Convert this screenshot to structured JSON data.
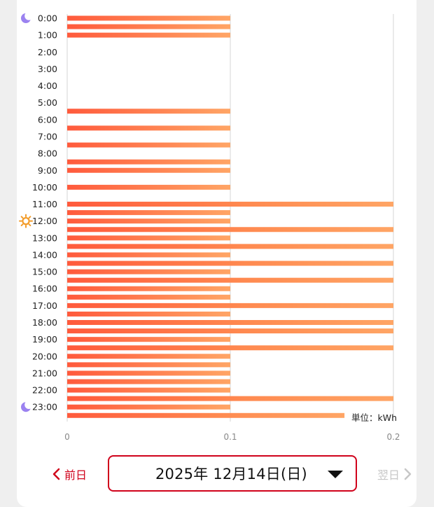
{
  "chart_data": {
    "type": "bar",
    "orientation": "horizontal",
    "unit_label": "単位：kWh",
    "xlim": [
      0,
      0.2
    ],
    "x_ticks": [
      "0",
      "0.1",
      "0.2"
    ],
    "hour_labels": [
      "0:00",
      "1:00",
      "2:00",
      "3:00",
      "4:00",
      "5:00",
      "6:00",
      "7:00",
      "8:00",
      "9:00",
      "10:00",
      "11:00",
      "12:00",
      "13:00",
      "14:00",
      "15:00",
      "16:00",
      "17:00",
      "18:00",
      "19:00",
      "20:00",
      "21:00",
      "22:00",
      "23:00"
    ],
    "categories": [
      "0:00",
      "0:30",
      "1:00",
      "1:30",
      "2:00",
      "2:30",
      "3:00",
      "3:30",
      "4:00",
      "4:30",
      "5:00",
      "5:30",
      "6:00",
      "6:30",
      "7:00",
      "7:30",
      "8:00",
      "8:30",
      "9:00",
      "9:30",
      "10:00",
      "10:30",
      "11:00",
      "11:30",
      "12:00",
      "12:30",
      "13:00",
      "13:30",
      "14:00",
      "14:30",
      "15:00",
      "15:30",
      "16:00",
      "16:30",
      "17:00",
      "17:30",
      "18:00",
      "18:30",
      "19:00",
      "19:30",
      "20:00",
      "20:30",
      "21:00",
      "21:30",
      "22:00",
      "22:30",
      "23:00",
      "23:30"
    ],
    "values": [
      0.1,
      0.1,
      0.1,
      0,
      0,
      0,
      0,
      0,
      0,
      0,
      0,
      0.1,
      0,
      0.1,
      0,
      0.1,
      0,
      0.1,
      0.1,
      0,
      0.1,
      0,
      0.2,
      0.1,
      0.1,
      0.2,
      0.1,
      0.2,
      0.1,
      0.2,
      0.1,
      0.2,
      0.1,
      0.1,
      0.2,
      0.1,
      0.2,
      0.2,
      0.1,
      0.2,
      0.1,
      0.1,
      0.1,
      0.1,
      0.1,
      0.2,
      0.1,
      0.17
    ],
    "grid": true,
    "time_icons": {
      "0:00": "moon-icon",
      "12:00": "sun-icon",
      "23:00": "moon-icon"
    }
  },
  "colors": {
    "bar_low": "#ff5a3c",
    "bar_high": "#ffa565",
    "moon": "#9b82f0",
    "sun": "#f39c2a",
    "accent": "#d0021b",
    "disabled": "#c7c7c7"
  },
  "nav": {
    "prev_label": "前日",
    "date": "2025年 12月14日(日)",
    "next_label": "翌日"
  }
}
